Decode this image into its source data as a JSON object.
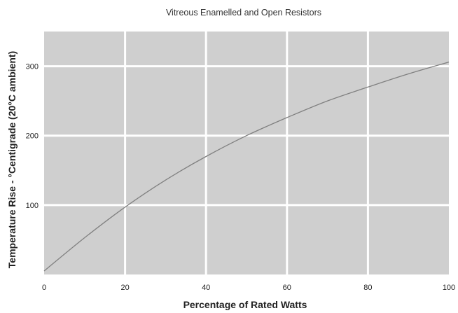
{
  "chart_data": {
    "type": "line",
    "title": "Vitreous Enamelled and Open Resistors",
    "xlabel": "Percentage of Rated Watts",
    "ylabel": "Temperature Rise - °Centigrade (20°C ambient)",
    "xlim": [
      0,
      100
    ],
    "ylim": [
      0,
      350
    ],
    "x_ticks": [
      0,
      20,
      40,
      60,
      80,
      100
    ],
    "y_ticks": [
      100,
      200,
      300
    ],
    "grid": true,
    "x": [
      0,
      10,
      20,
      30,
      40,
      50,
      60,
      70,
      80,
      90,
      100
    ],
    "y": [
      5,
      53,
      97,
      136,
      170,
      200,
      226,
      250,
      270,
      289,
      306
    ],
    "colors": {
      "plot_background": "#cfcfcf",
      "grid": "#ffffff",
      "curve": "#808080"
    }
  }
}
